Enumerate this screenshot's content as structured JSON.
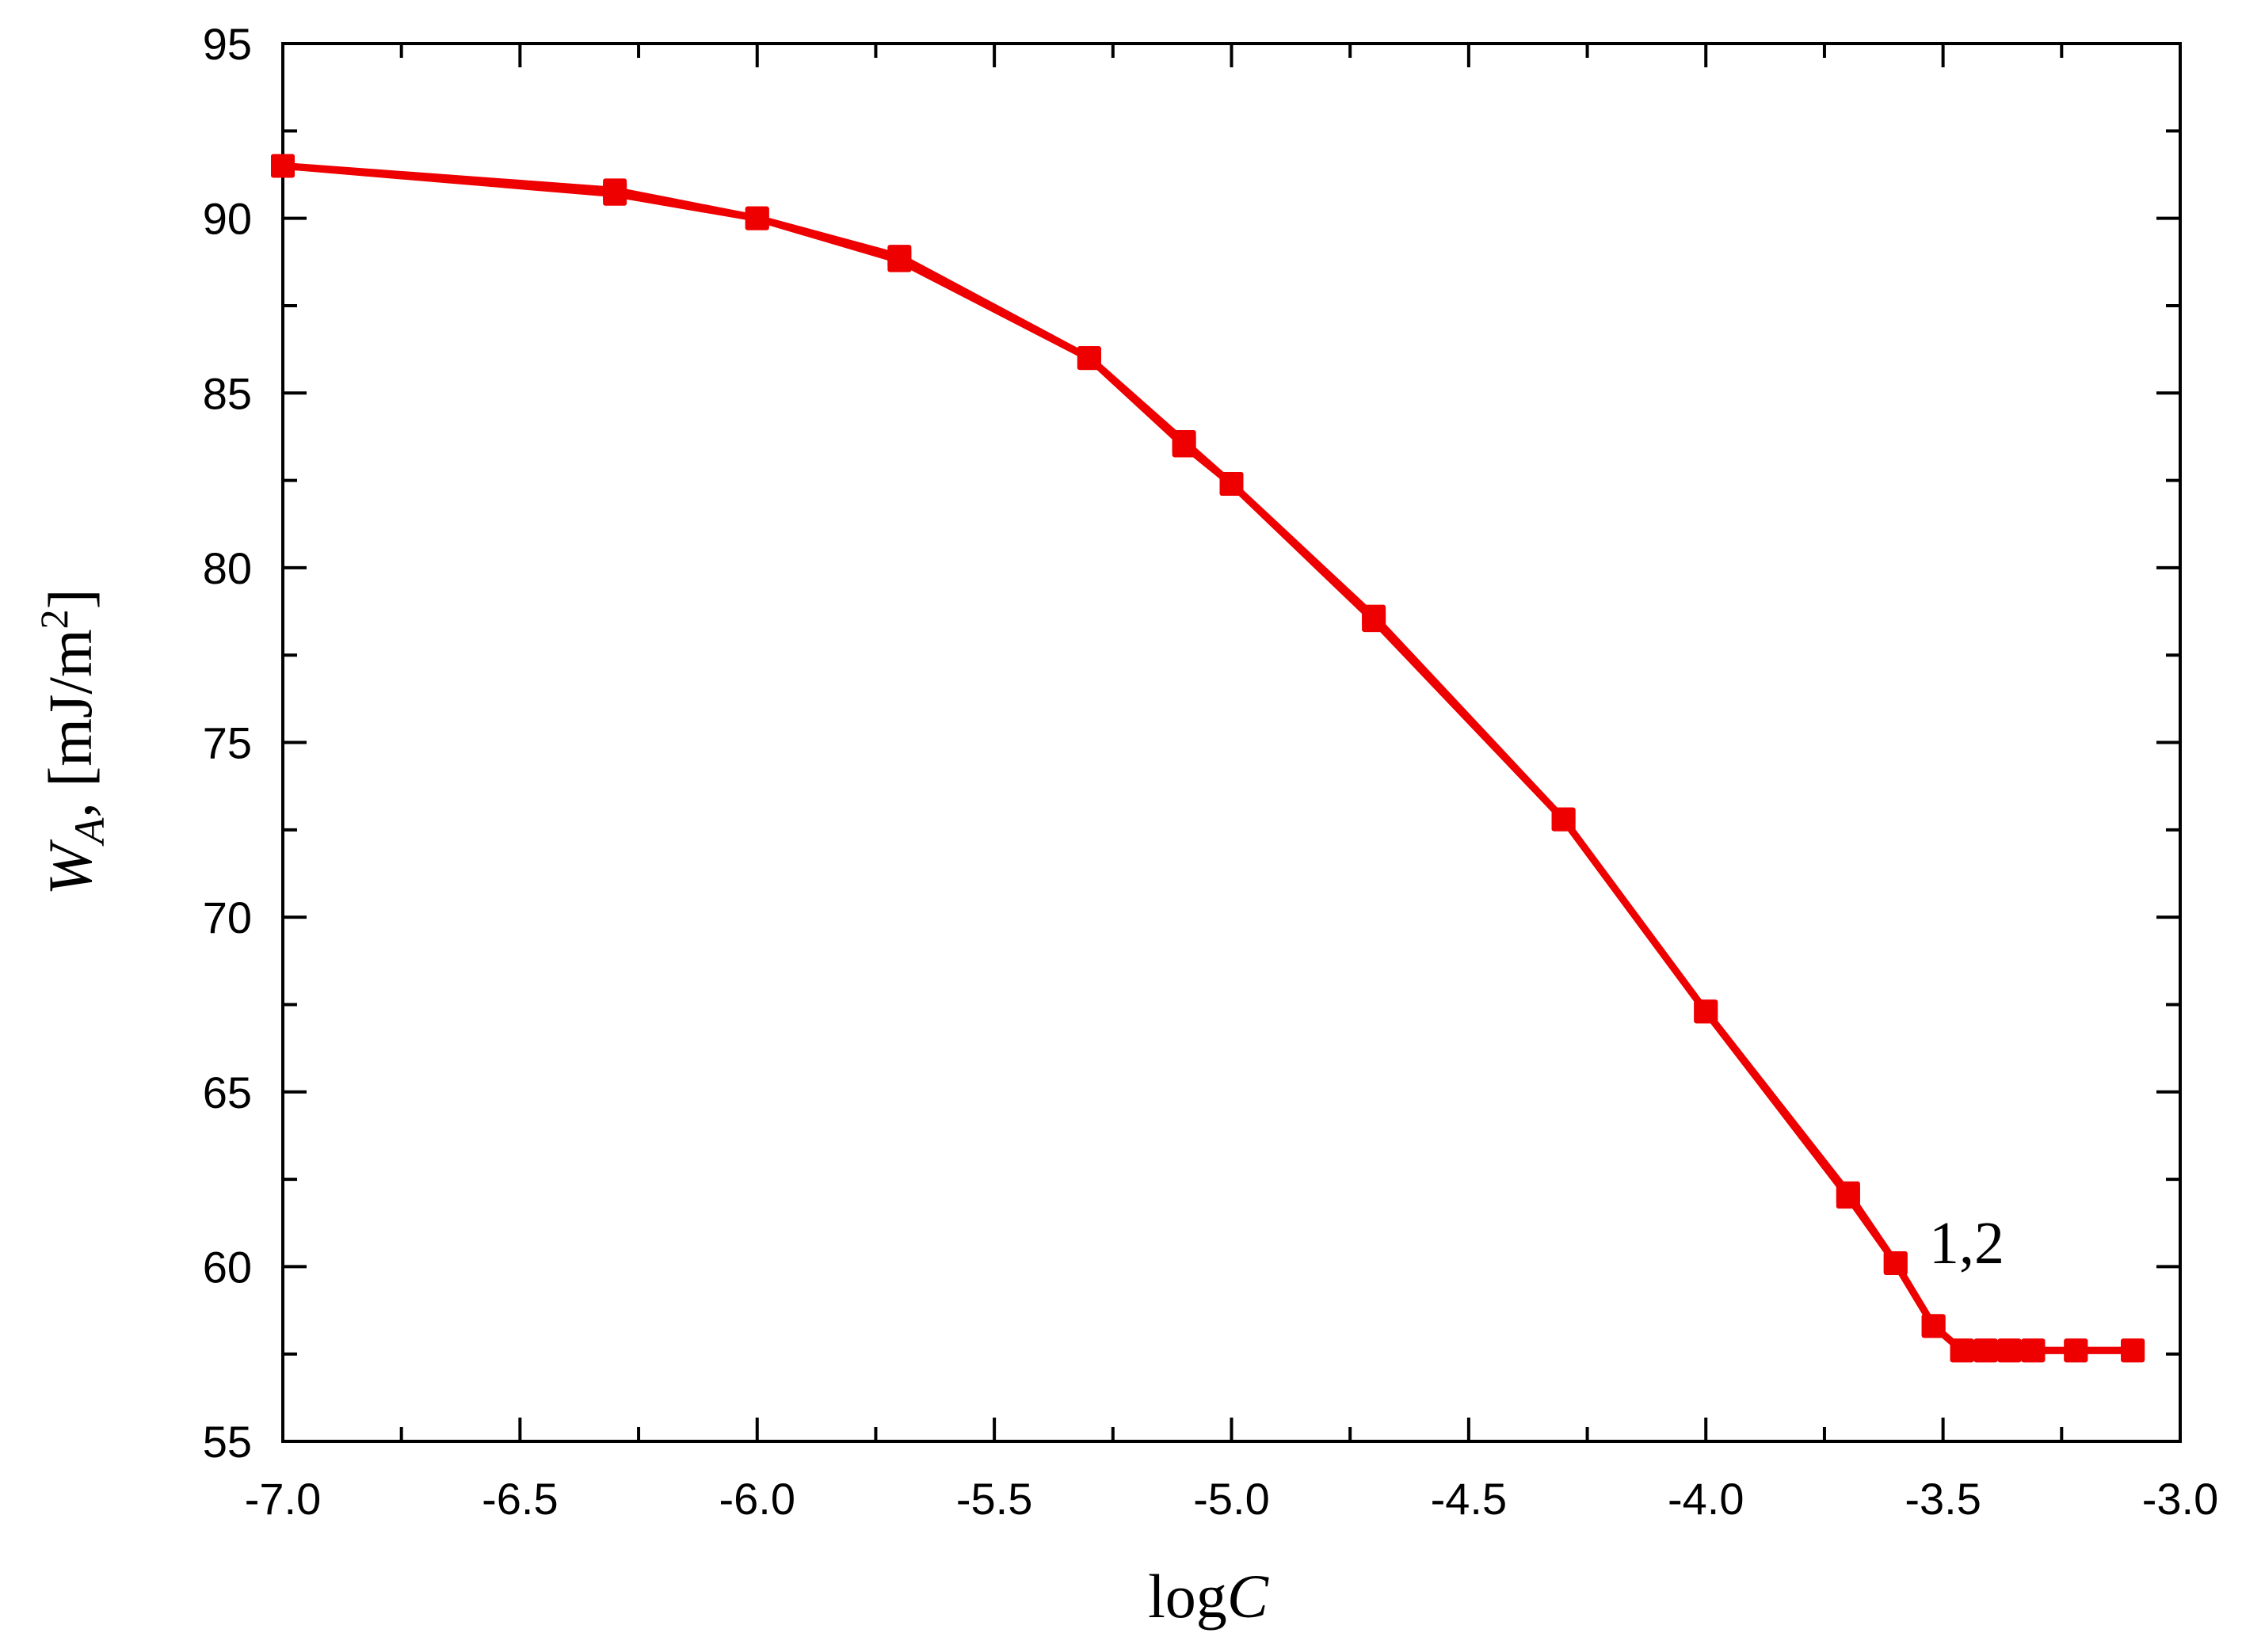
{
  "chart_data": {
    "type": "line",
    "title": "",
    "xlabel_main": "log",
    "xlabel_var": "C",
    "ylabel_var": "W",
    "ylabel_sub": "A",
    "ylabel_unit": ", [mJ/m",
    "ylabel_sup": "2",
    "ylabel_close": "]",
    "xlim": [
      -7.0,
      -3.0
    ],
    "ylim": [
      55,
      95
    ],
    "xticks": [
      "-7.0",
      "-6.5",
      "-6.0",
      "-5.5",
      "-5.0",
      "-4.5",
      "-4.0",
      "-3.5",
      "-3.0"
    ],
    "yticks": [
      "55",
      "60",
      "65",
      "70",
      "75",
      "80",
      "85",
      "90",
      "95"
    ],
    "grid": false,
    "line_color": "#ee0000",
    "annotation": "1,2",
    "series": [
      {
        "x": [
          -7.0,
          -6.3,
          -6.0,
          -5.7,
          -5.3,
          -5.1,
          -5.0,
          -4.7,
          -4.3,
          -4.0,
          -3.7,
          -3.6,
          -3.52,
          -3.46,
          -3.41,
          -3.36,
          -3.31,
          -3.22,
          -3.1
        ],
        "y": [
          91.5,
          90.8,
          90.0,
          88.9,
          86.0,
          83.6,
          82.4,
          78.6,
          72.8,
          67.3,
          62.1,
          60.1,
          58.3,
          57.6,
          57.6,
          57.6,
          57.6,
          57.6,
          57.6
        ]
      },
      {
        "x": [
          -7.0,
          -6.3,
          -6.0,
          -5.7,
          -5.3,
          -5.1,
          -5.0,
          -4.7,
          -4.3,
          -4.0,
          -3.7,
          -3.6,
          -3.52,
          -3.46,
          -3.41,
          -3.36,
          -3.31,
          -3.22,
          -3.1
        ],
        "y": [
          91.5,
          90.7,
          90.0,
          88.8,
          86.0,
          83.5,
          82.4,
          78.5,
          72.8,
          67.3,
          62.0,
          60.1,
          58.3,
          57.6,
          57.6,
          57.6,
          57.6,
          57.6,
          57.6
        ]
      }
    ]
  }
}
